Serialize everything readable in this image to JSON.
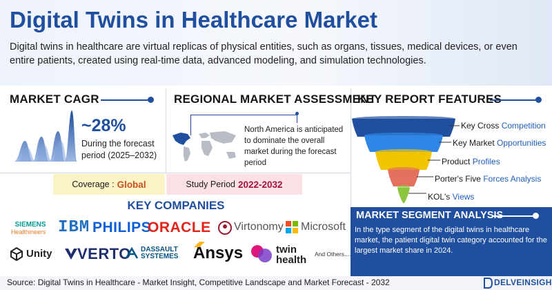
{
  "header": {
    "title": "Digital Twins in Healthcare Market",
    "description": "Digital twins in healthcare are virtual replicas of physical entities, such as organs, tissues, medical devices, or even entire patients, created using real-time data, advanced modeling, and simulation technologies."
  },
  "cagr": {
    "title": "MARKET CAGR",
    "value": "~28%",
    "subtitle": "During the forecast period (2025–2032)"
  },
  "regional": {
    "title": "REGIONAL MARKET ASSESSMENT",
    "note": "North America is anticipated to dominate the overall market during the forecast period"
  },
  "coverage": {
    "label": "Coverage :",
    "value": "Global"
  },
  "study": {
    "label": "Study Period",
    "value": "2022-2032"
  },
  "companies": {
    "title": "KEY COMPANIES",
    "siemens_top": "SIEMENS",
    "siemens_bottom": "Healthineers",
    "ibm": "IBM",
    "philips": "PHILIPS",
    "oracle": "ORACLE",
    "virtonomy": "Virtonomy",
    "microsoft": "Microsoft",
    "unity": "Unity",
    "verto": "VERTO",
    "dassault_top": "DASSAULT",
    "dassault_bottom": "SYSTEMES",
    "ansys": "Ansys",
    "twin_top": "twin",
    "twin_bottom": "health",
    "others": "And Others...."
  },
  "features": {
    "title": "KEY REPORT FEATURES",
    "items": [
      {
        "pre": "Key Cross ",
        "hl": "Competition"
      },
      {
        "pre": "Key Market ",
        "hl": "Opportunities"
      },
      {
        "pre": "Product ",
        "hl": "Profiles"
      },
      {
        "pre": "Porter's Five ",
        "hl": "Forces Analysis"
      },
      {
        "pre": "KOL's ",
        "hl": "Views"
      }
    ],
    "funnel_colors": [
      "#1f4f9e",
      "#2f86e6",
      "#f2c400",
      "#e3715d",
      "#8cc63f"
    ]
  },
  "segment": {
    "title": "MARKET SEGMENT ANALYSIS",
    "text": "In the type segment of the digital twins in healthcare market, the patient digital twin category accounted for the largest market share in 2024."
  },
  "footer": {
    "source": "Source: Digital Twins in Healthcare - Market Insight, Competitive Landscape and Market Forecast - 2032",
    "brand": "DELVEINSIGHT"
  },
  "colors": {
    "accent": "#1f4f9e",
    "coverage_value": "#c7511f",
    "study_value": "#a3123f"
  }
}
